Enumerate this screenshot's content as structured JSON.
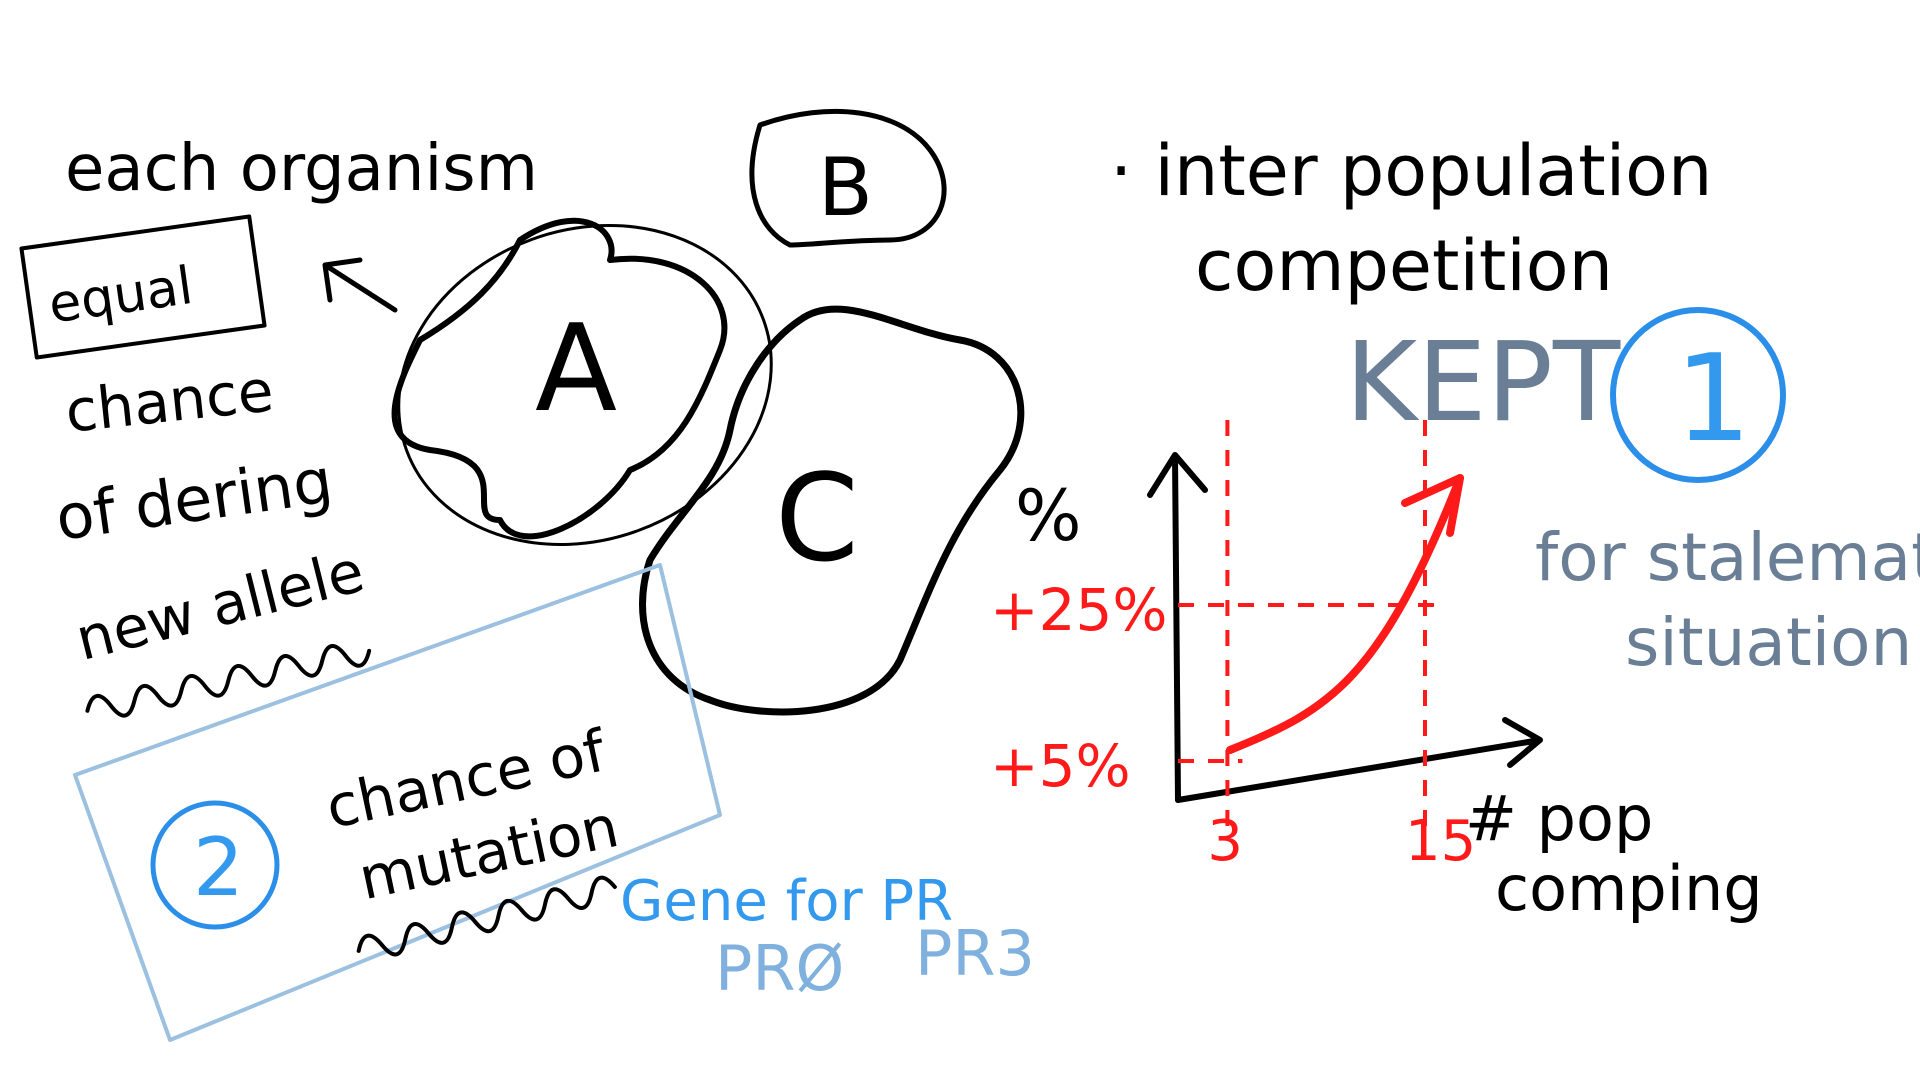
{
  "notes": {
    "each_organism": "each organism",
    "equal": "equal",
    "chance": "chance",
    "of_dering": "of dering",
    "new_allele": "new allele",
    "chance_of": "chance of",
    "mutation": "mutation",
    "gene_for_pr": "Gene for PR",
    "pr0": "PRØ",
    "pr3": "PR3",
    "interpopulation": "· inter population",
    "competition": "competition",
    "kept": "KEPT",
    "for_stalemate": "for stalemate",
    "situation": "situation",
    "pop": "# pop",
    "comping": "comping"
  },
  "blobs": {
    "a": "A",
    "b": "B",
    "c": "C"
  },
  "circles": {
    "one": "1",
    "two": "2"
  },
  "chart_data": {
    "type": "line",
    "ylabel": "%",
    "xlabel": "# pop comping",
    "y_ticks": [
      "+5%",
      "+25%"
    ],
    "x_ticks": [
      "3",
      "15"
    ],
    "series": [
      {
        "x": [
          3,
          15
        ],
        "y": [
          5,
          25
        ]
      }
    ]
  },
  "colors": {
    "ink": "#000000",
    "red": "#ff1a1a",
    "blue": "#2b8ee8",
    "light_blue": "#9cc0e0",
    "slate": "#6a7f96"
  }
}
